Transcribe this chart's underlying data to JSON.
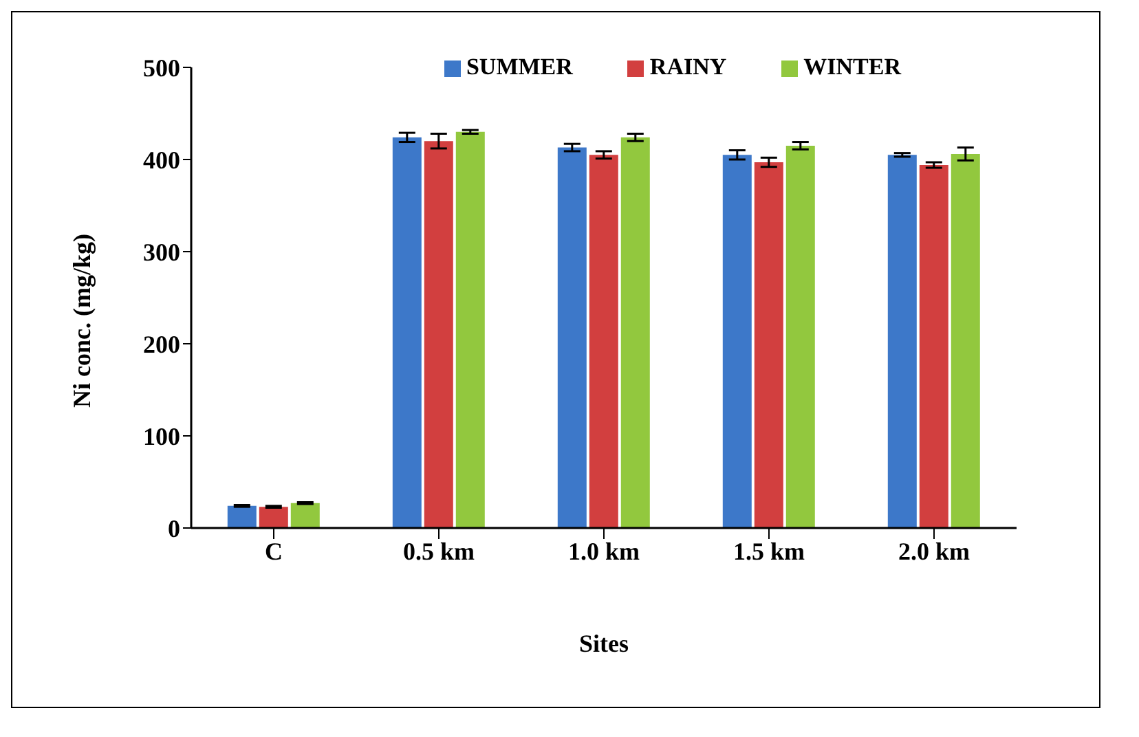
{
  "chart_data": {
    "type": "bar",
    "xlabel": "Sites",
    "ylabel": "Ni conc. (mg/kg)",
    "categories": [
      "C",
      "0.5 km",
      "1.0 km",
      "1.5 km",
      "2.0 km"
    ],
    "series": [
      {
        "name": "SUMMER",
        "color": "#3d78c9",
        "values": [
          24,
          424,
          413,
          405,
          405
        ],
        "errors": [
          1,
          5,
          4,
          5,
          2
        ]
      },
      {
        "name": "RAINY",
        "color": "#d23f3f",
        "values": [
          23,
          420,
          405,
          397,
          394
        ],
        "errors": [
          1,
          8,
          4,
          5,
          3
        ]
      },
      {
        "name": "WINTER",
        "color": "#92c83e",
        "values": [
          27,
          430,
          424,
          415,
          406
        ],
        "errors": [
          1,
          2,
          4,
          4,
          7
        ]
      }
    ],
    "ylim": [
      0,
      500
    ],
    "yticks": [
      0,
      100,
      200,
      300,
      400,
      500
    ],
    "grid": false,
    "legend": "top"
  }
}
